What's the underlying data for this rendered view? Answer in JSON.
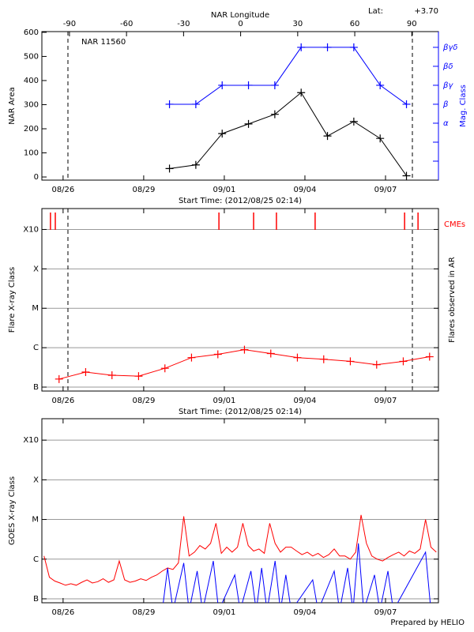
{
  "chart_data": [
    {
      "type": "line",
      "title": "NAR 11560",
      "lat_label": "Lat:",
      "lat": "+3.70",
      "x_label": "Start Time: (2012/08/25 02:14)",
      "x2_label": "NAR Longitude",
      "y_label": "NAR Area",
      "y2_label": "Mag. Class",
      "xlim": [
        0.12,
        14.88
      ],
      "xticks": [
        {
          "value": 0.91,
          "label": "08/26"
        },
        {
          "value": 3.91,
          "label": "08/29"
        },
        {
          "value": 6.91,
          "label": "09/01"
        },
        {
          "value": 9.91,
          "label": "09/04"
        },
        {
          "value": 12.91,
          "label": "09/07"
        }
      ],
      "x2lim": [
        -104.5,
        104
      ],
      "x2ticks": [
        -90,
        -60,
        -30,
        0,
        30,
        60,
        90
      ],
      "ylim": [
        -13,
        603
      ],
      "yticks": [
        0,
        100,
        200,
        300,
        400,
        500,
        600
      ],
      "y2lim": [
        -1,
        6.83
      ],
      "y2ticks": [
        {
          "value": 2,
          "label": "α"
        },
        {
          "value": 3,
          "label": "β"
        },
        {
          "value": 4,
          "label": "βγ"
        },
        {
          "value": 5,
          "label": "βδ"
        },
        {
          "value": 6,
          "label": "βγδ"
        }
      ],
      "y2minor": [
        0,
        1
      ],
      "vlines": [
        1.09,
        13.91
      ],
      "series": [
        {
          "color": "#000000",
          "marker": "plus",
          "x": [
            4.87,
            5.85,
            6.83,
            7.81,
            8.79,
            9.77,
            10.75,
            11.73,
            12.71,
            13.69
          ],
          "values": [
            35,
            50,
            180,
            220,
            260,
            350,
            170,
            230,
            160,
            5
          ]
        },
        {
          "color": "#0000ff",
          "marker": "plus",
          "axis": "y2",
          "x": [
            4.87,
            5.85,
            6.83,
            7.81,
            8.79,
            9.77,
            10.75,
            11.73,
            12.71,
            13.69
          ],
          "values": [
            3,
            3,
            4,
            4,
            4,
            6,
            6,
            6,
            4,
            3
          ]
        }
      ]
    },
    {
      "type": "line",
      "x_label": "Start Time: (2012/08/25 02:14)",
      "y_label": "Flare X-ray Class",
      "y2_label": "Flares observed in AR",
      "cme_label": "CMEs",
      "cme_color": "#ff0000",
      "cmes": [
        0.44,
        0.62,
        6.71,
        8.0,
        8.85,
        10.29,
        13.62,
        14.12
      ],
      "xlim": [
        0.12,
        14.88
      ],
      "xticks": [
        {
          "value": 0.91,
          "label": "08/26"
        },
        {
          "value": 3.91,
          "label": "08/29"
        },
        {
          "value": 6.91,
          "label": "09/01"
        },
        {
          "value": 9.91,
          "label": "09/04"
        },
        {
          "value": 12.91,
          "label": "09/07"
        }
      ],
      "log": true,
      "ylim": [
        7.94e-08,
        0.00339
      ],
      "yticks": [
        {
          "value": 1e-07,
          "label": "B"
        },
        {
          "value": 1e-06,
          "label": "C"
        },
        {
          "value": 1e-05,
          "label": "M"
        },
        {
          "value": 0.0001,
          "label": "X"
        },
        {
          "value": 0.001,
          "label": "X10"
        }
      ],
      "grid": true,
      "vlines": [
        1.09,
        13.91
      ],
      "series": [
        {
          "color": "#ff0000",
          "marker": "plus",
          "x": [
            0.76,
            1.75,
            2.73,
            3.72,
            4.7,
            5.69,
            6.67,
            7.66,
            8.64,
            9.63,
            10.61,
            11.6,
            12.58,
            13.57,
            14.55
          ],
          "values": [
            1.6e-07,
            2.4e-07,
            2e-07,
            1.9e-07,
            3e-07,
            5.6e-07,
            6.8e-07,
            8.9e-07,
            7.1e-07,
            5.6e-07,
            5.1e-07,
            4.5e-07,
            3.7e-07,
            4.5e-07,
            5.9e-07
          ]
        }
      ]
    },
    {
      "type": "line",
      "y_label": "GOES X-ray Class",
      "xlim": [
        0.12,
        14.88
      ],
      "xticks": [
        {
          "value": 0.91,
          "label": "08/26"
        },
        {
          "value": 3.91,
          "label": "08/29"
        },
        {
          "value": 6.91,
          "label": "09/01"
        },
        {
          "value": 9.91,
          "label": "09/04"
        },
        {
          "value": 12.91,
          "label": "09/07"
        }
      ],
      "log": true,
      "ylim": [
        7.94e-08,
        0.00347
      ],
      "yticks": [
        {
          "value": 1e-07,
          "label": "B"
        },
        {
          "value": 1e-06,
          "label": "C"
        },
        {
          "value": 1e-05,
          "label": "M"
        },
        {
          "value": 0.0001,
          "label": "X"
        },
        {
          "value": 0.001,
          "label": "X10"
        }
      ],
      "grid": true,
      "series": [
        {
          "color": "#ff0000",
          "x": [
            0.2,
            0.4,
            0.6,
            0.8,
            1.0,
            1.2,
            1.4,
            1.6,
            1.8,
            2.0,
            2.2,
            2.4,
            2.6,
            2.8,
            3.0,
            3.2,
            3.4,
            3.6,
            3.8,
            4.0,
            4.2,
            4.4,
            4.6,
            4.8,
            5.0,
            5.2,
            5.4,
            5.6,
            5.8,
            6.0,
            6.2,
            6.4,
            6.6,
            6.8,
            7.0,
            7.2,
            7.4,
            7.6,
            7.8,
            8.0,
            8.2,
            8.4,
            8.6,
            8.8,
            9.0,
            9.2,
            9.4,
            9.6,
            9.8,
            10.0,
            10.2,
            10.4,
            10.6,
            10.8,
            11.0,
            11.2,
            11.4,
            11.6,
            11.8,
            12.0,
            12.2,
            12.4,
            12.6,
            12.8,
            13.0,
            13.2,
            13.4,
            13.6,
            13.8,
            14.0,
            14.2,
            14.4,
            14.6,
            14.8
          ],
          "values": [
            1.2e-06,
            3.5e-07,
            2.8e-07,
            2.5e-07,
            2.2e-07,
            2.4e-07,
            2.2e-07,
            2.6e-07,
            3e-07,
            2.5e-07,
            2.7e-07,
            3.2e-07,
            2.6e-07,
            3e-07,
            9e-07,
            3e-07,
            2.6e-07,
            2.8e-07,
            3.2e-07,
            2.9e-07,
            3.5e-07,
            4e-07,
            5e-07,
            6e-07,
            5.5e-07,
            8e-07,
            1.2e-05,
            1.2e-06,
            1.5e-06,
            2.2e-06,
            1.8e-06,
            2.5e-06,
            8e-06,
            1.4e-06,
            2e-06,
            1.5e-06,
            2e-06,
            8e-06,
            2.2e-06,
            1.6e-06,
            1.8e-06,
            1.4e-06,
            8e-06,
            2.5e-06,
            1.5e-06,
            2e-06,
            2e-06,
            1.6e-06,
            1.3e-06,
            1.5e-06,
            1.2e-06,
            1.4e-06,
            1.1e-06,
            1.3e-06,
            1.8e-06,
            1.2e-06,
            1.2e-06,
            1e-06,
            1.5e-06,
            1.3e-05,
            2.5e-06,
            1.2e-06,
            1e-06,
            9e-07,
            1.1e-06,
            1.3e-06,
            1.5e-06,
            1.2e-06,
            1.6e-06,
            1.4e-06,
            1.8e-06,
            1e-05,
            2e-06,
            1.5e-06
          ]
        },
        {
          "color": "#0000ff",
          "x": [
            0.2,
            4.6,
            4.8,
            5.0,
            5.4,
            5.6,
            5.9,
            6.1,
            6.5,
            6.7,
            7.3,
            7.5,
            7.9,
            8.1,
            8.3,
            8.5,
            8.8,
            9.0,
            9.2,
            9.4,
            10.2,
            10.4,
            11.0,
            11.2,
            11.5,
            11.7,
            11.9,
            12.1,
            12.5,
            12.7,
            13.0,
            13.2,
            14.4,
            14.6,
            14.8
          ],
          "values": [
            5e-08,
            5e-08,
            6e-07,
            5e-08,
            8e-07,
            5e-08,
            5e-07,
            5e-08,
            9e-07,
            5e-08,
            4e-07,
            5e-08,
            5e-07,
            5e-08,
            6e-07,
            5e-08,
            9e-07,
            5e-08,
            4e-07,
            5e-08,
            3e-07,
            5e-08,
            5e-07,
            5e-08,
            6e-07,
            5e-08,
            2.5e-06,
            5e-08,
            4e-07,
            5e-08,
            5e-07,
            5e-08,
            1.5e-06,
            5e-08,
            5e-08
          ]
        }
      ]
    }
  ],
  "footer": "Prepared by HELIO"
}
